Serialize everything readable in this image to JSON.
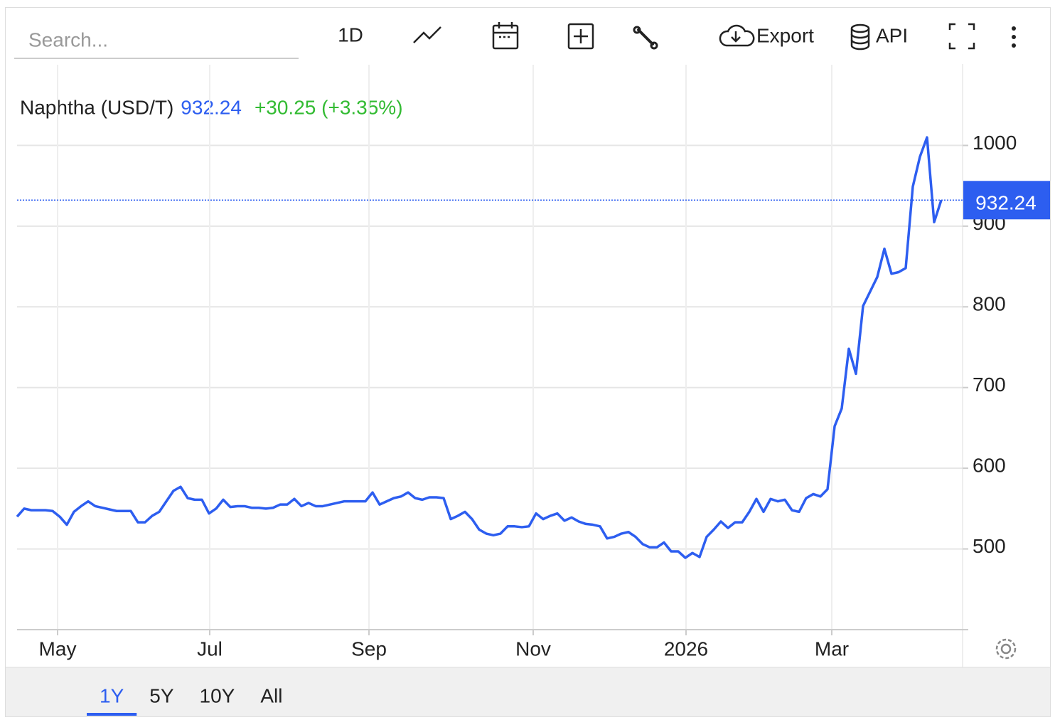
{
  "toolbar": {
    "search_placeholder": "Search...",
    "interval": "1D",
    "export": "Export",
    "api": "API"
  },
  "range_buttons": [
    "1Y",
    "5Y",
    "10Y",
    "All"
  ],
  "chart_data": {
    "type": "line",
    "title": "Naphtha (USD/T)",
    "change": "+30.25 (+3.35%)",
    "series": [
      {
        "name": "Naphtha (USD/T)",
        "color": "#2d5ef0",
        "values": [
          540,
          550,
          548,
          548,
          548,
          547,
          540,
          530,
          546,
          553,
          559,
          553,
          551,
          549,
          547,
          547,
          547,
          533,
          533,
          541,
          546,
          559,
          572,
          577,
          563,
          561,
          561,
          544,
          550,
          561,
          552,
          553,
          553,
          551,
          551,
          550,
          551,
          555,
          555,
          562,
          553,
          557,
          553,
          553,
          555,
          557,
          559,
          559,
          559,
          559,
          570,
          555,
          559,
          563,
          565,
          570,
          563,
          561,
          564,
          564,
          563,
          537,
          541,
          546,
          537,
          524,
          519,
          517,
          519,
          528,
          528,
          527,
          528,
          544,
          537,
          541,
          544,
          535,
          539,
          534,
          531,
          530,
          528,
          513,
          515,
          519,
          521,
          515,
          506,
          502,
          502,
          508,
          497,
          497,
          489,
          495,
          490,
          515,
          524,
          534,
          526,
          533,
          533,
          546,
          562,
          546,
          562,
          559,
          561,
          548,
          546,
          563,
          568,
          565,
          574,
          652,
          674,
          748,
          717,
          801,
          819,
          837,
          872,
          841,
          843,
          848,
          949,
          986,
          1010,
          905,
          932.24
        ]
      }
    ],
    "xlim": [
      0,
      133
    ],
    "xticks": [
      {
        "value": 5.7,
        "label": "May"
      },
      {
        "value": 27.1,
        "label": "Jul"
      },
      {
        "value": 49.5,
        "label": "Sep"
      },
      {
        "value": 72.6,
        "label": "Nov"
      },
      {
        "value": 94.1,
        "label": "2026"
      },
      {
        "value": 114.6,
        "label": "Mar"
      }
    ],
    "ylim": [
      400,
      1100
    ],
    "yticks": [
      500,
      600,
      700,
      800,
      900,
      1000
    ],
    "grid": true
  }
}
